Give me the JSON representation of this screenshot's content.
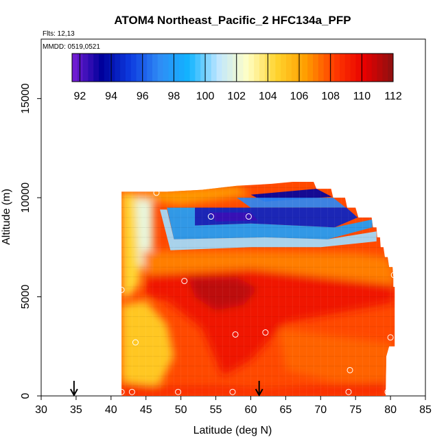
{
  "chart_data": {
    "type": "heatmap",
    "title": "ATOM4 Northeast_Pacific_2 HFC134a_PFP",
    "flights_label": "Flts: 12,13",
    "dates_label": "MMDD: 0519,0521",
    "xlabel": "Latitude (deg N)",
    "ylabel": "Altitude (m)",
    "xlim": [
      30,
      85
    ],
    "ylim": [
      0,
      18000
    ],
    "x_ticks": [
      "30",
      "35",
      "40",
      "45",
      "50",
      "55",
      "60",
      "65",
      "70",
      "75",
      "80",
      "85"
    ],
    "y_ticks": [
      "0",
      "5000",
      "10000",
      "15000"
    ],
    "colorbar": {
      "min": 91.5,
      "max": 112,
      "tick_labels": [
        "92",
        "94",
        "96",
        "98",
        "100",
        "102",
        "104",
        "106",
        "108",
        "110",
        "112"
      ],
      "stops": [
        "#7a1fd6",
        "#00009a",
        "#0d3be0",
        "#2f8cf5",
        "#11b4ff",
        "#bfe6ff",
        "#ffffc6",
        "#ffd42e",
        "#ff9e00",
        "#ff3a00",
        "#e80000",
        "#8b1111"
      ]
    },
    "region_top_edge": [
      [
        41.5,
        10300
      ],
      [
        44,
        10300
      ],
      [
        48,
        10300
      ],
      [
        53,
        10400
      ],
      [
        58,
        10600
      ],
      [
        63,
        10700
      ],
      [
        66,
        10800
      ],
      [
        69,
        10800
      ],
      [
        69.4,
        10450
      ],
      [
        71.5,
        10450
      ],
      [
        71.8,
        10000
      ],
      [
        73.5,
        10000
      ],
      [
        73.8,
        9500
      ],
      [
        75,
        9500
      ],
      [
        75.4,
        9000
      ],
      [
        77.3,
        9000
      ],
      [
        77.5,
        8500
      ],
      [
        78,
        8500
      ],
      [
        78.1,
        8000
      ],
      [
        78.5,
        8000
      ],
      [
        78.6,
        7500
      ],
      [
        79,
        7500
      ],
      [
        79.2,
        7000
      ],
      [
        79.6,
        7000
      ],
      [
        79.8,
        6500
      ],
      [
        80.3,
        6500
      ],
      [
        80.4,
        6000
      ],
      [
        80.4,
        5500
      ],
      [
        80.6,
        5500
      ],
      [
        80.6,
        2500
      ],
      [
        80.2,
        2500
      ],
      [
        79.8,
        2500
      ],
      [
        79.4,
        2000
      ],
      [
        79.3,
        0
      ]
    ],
    "blue_bands": [
      {
        "name": "upper-thin-blue",
        "points": [
          [
            60,
            10150
          ],
          [
            69.4,
            10450
          ],
          [
            71.6,
            10050
          ],
          [
            62,
            9800
          ]
        ],
        "value": 93.5
      },
      {
        "name": "upper-cyan",
        "points": [
          [
            58,
            10000
          ],
          [
            71.8,
            10000
          ],
          [
            73.6,
            9500
          ],
          [
            60,
            9500
          ]
        ],
        "value": 97
      },
      {
        "name": "core-blue",
        "points": [
          [
            52,
            9500
          ],
          [
            73.7,
            9500
          ],
          [
            75.3,
            9000
          ],
          [
            72,
            8500
          ],
          [
            60,
            8700
          ],
          [
            52,
            8600
          ]
        ],
        "value": 94.5
      },
      {
        "name": "core-purple",
        "points": [
          [
            54,
            9250
          ],
          [
            60,
            9250
          ],
          [
            61,
            8850
          ],
          [
            55,
            8800
          ]
        ],
        "value": 92.5
      },
      {
        "name": "mid-cyan",
        "points": [
          [
            48,
            9500
          ],
          [
            52,
            9500
          ],
          [
            52,
            8600
          ],
          [
            60,
            8700
          ],
          [
            72,
            8500
          ],
          [
            77.4,
            8900
          ],
          [
            77.4,
            8500
          ],
          [
            71,
            7900
          ],
          [
            62,
            8000
          ],
          [
            49,
            7900
          ]
        ],
        "value": 98
      },
      {
        "name": "lower-lightblue",
        "points": [
          [
            47,
            9400
          ],
          [
            48,
            9400
          ],
          [
            49,
            7900
          ],
          [
            62,
            8000
          ],
          [
            71,
            7900
          ],
          [
            78,
            8300
          ],
          [
            78,
            7800
          ],
          [
            70,
            7500
          ],
          [
            60,
            7500
          ],
          [
            48.5,
            7350
          ]
        ],
        "value": 100.5
      }
    ],
    "warm_fields": [
      {
        "name": "left-strip-yellow",
        "points": [
          [
            41.5,
            10300
          ],
          [
            44,
            10300
          ],
          [
            44.5,
            7000
          ],
          [
            44,
            5600
          ],
          [
            42.5,
            5000
          ],
          [
            41.6,
            5000
          ]
        ],
        "value": 104.5
      },
      {
        "name": "left-white",
        "points": [
          [
            43.5,
            10000
          ],
          [
            46,
            10000
          ],
          [
            46,
            7500
          ],
          [
            45,
            6400
          ],
          [
            44,
            6600
          ]
        ],
        "value": 102
      },
      {
        "name": "upper-orange",
        "points": [
          [
            41.5,
            10300
          ],
          [
            58,
            10600
          ],
          [
            60,
            10150
          ],
          [
            50,
            9600
          ],
          [
            44,
            9950
          ]
        ],
        "value": 106.5
      },
      {
        "name": "mid-orange",
        "points": [
          [
            44.5,
            7300
          ],
          [
            60,
            7300
          ],
          [
            75,
            7200
          ],
          [
            79.5,
            7000
          ],
          [
            80.5,
            6400
          ],
          [
            80.5,
            5600
          ],
          [
            60,
            6300
          ],
          [
            45,
            6000
          ]
        ],
        "value": 107
      },
      {
        "name": "red-core",
        "points": [
          [
            45,
            6100
          ],
          [
            60,
            6400
          ],
          [
            80.5,
            5600
          ],
          [
            80.5,
            4700
          ],
          [
            65,
            3700
          ],
          [
            60,
            1800
          ],
          [
            56,
            1000
          ],
          [
            53,
            3400
          ],
          [
            48,
            4800
          ],
          [
            45,
            5000
          ]
        ],
        "value": 109.5
      },
      {
        "name": "dark-red-core",
        "points": [
          [
            51,
            6000
          ],
          [
            58,
            6000
          ],
          [
            61,
            5400
          ],
          [
            59,
            4600
          ],
          [
            55,
            4300
          ],
          [
            52,
            5000
          ]
        ],
        "value": 111
      },
      {
        "name": "lower-left-yellow",
        "points": [
          [
            41.5,
            4600
          ],
          [
            45,
            4800
          ],
          [
            48,
            3600
          ],
          [
            49,
            2000
          ],
          [
            47,
            600
          ],
          [
            44,
            400
          ],
          [
            41.5,
            800
          ]
        ],
        "value": 105
      },
      {
        "name": "lower-right-orange",
        "points": [
          [
            64,
            3400
          ],
          [
            72,
            3000
          ],
          [
            80.5,
            2600
          ],
          [
            79.5,
            600
          ],
          [
            72,
            700
          ],
          [
            65,
            1300
          ]
        ],
        "value": 107.5
      },
      {
        "name": "bottom-red",
        "points": [
          [
            41.5,
            700
          ],
          [
            48,
            450
          ],
          [
            56,
            500
          ],
          [
            62,
            300
          ],
          [
            79.3,
            700
          ],
          [
            79.3,
            0
          ],
          [
            41.5,
            0
          ]
        ],
        "value": 108.8
      }
    ],
    "base_value": 108,
    "sample_points": [
      [
        41.3,
        10450
      ],
      [
        46.5,
        10250
      ],
      [
        54.3,
        9050
      ],
      [
        59.7,
        9050
      ],
      [
        69.7,
        10750
      ],
      [
        41.5,
        5350
      ],
      [
        50.5,
        5800
      ],
      [
        80.5,
        6100
      ],
      [
        43.5,
        2700
      ],
      [
        57.8,
        3100
      ],
      [
        62.1,
        3200
      ],
      [
        74.2,
        1300
      ],
      [
        80,
        2950
      ],
      [
        41.5,
        200
      ],
      [
        43,
        200
      ],
      [
        49.6,
        200
      ],
      [
        57.4,
        200
      ],
      [
        74,
        200
      ],
      [
        79.6,
        200
      ]
    ],
    "flight_markers": [
      34.7,
      61.2
    ]
  }
}
